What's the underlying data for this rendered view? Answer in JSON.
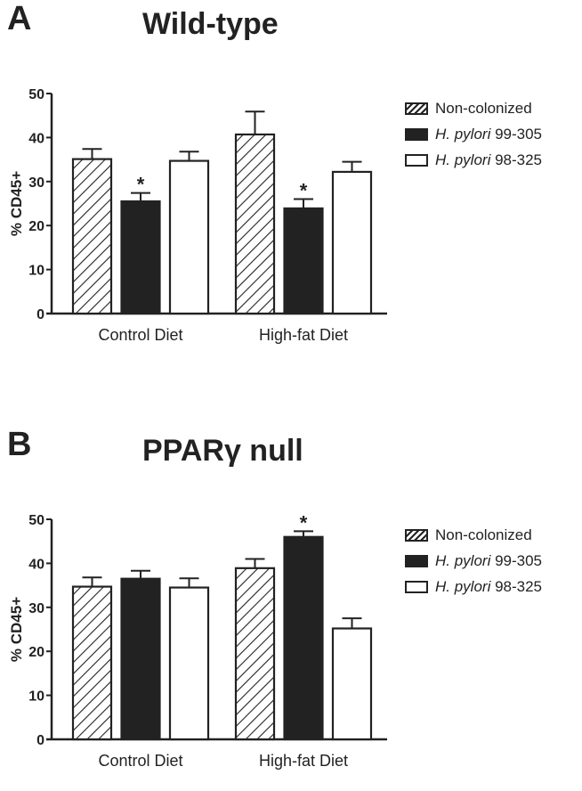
{
  "chart_data": [
    {
      "type": "bar",
      "panel_letter": "A",
      "title": "Wild-type",
      "ylabel": "% CD45+",
      "ylim": [
        0,
        50
      ],
      "yticks": [
        "0",
        "10",
        "20",
        "30",
        "40",
        "50"
      ],
      "categories": [
        "Control Diet",
        "High-fat Diet"
      ],
      "series": [
        {
          "name": "Non-colonized",
          "name_italic": "",
          "name_rest": "Non-colonized",
          "fill": "hatch",
          "values": [
            35.1,
            40.7
          ],
          "error": [
            2.3,
            5.2
          ],
          "significant": [
            false,
            false
          ]
        },
        {
          "name": "H. pylori 99-305",
          "name_italic": "H. pylori",
          "name_rest": " 99-305",
          "fill": "#222222",
          "values": [
            25.5,
            23.9
          ],
          "error": [
            1.9,
            2.1
          ],
          "significant": [
            true,
            true
          ]
        },
        {
          "name": "H. pylori 98-325",
          "name_italic": "H. pylori",
          "name_rest": " 98-325",
          "fill": "#ffffff",
          "values": [
            34.7,
            32.2
          ],
          "error": [
            2.1,
            2.3
          ],
          "significant": [
            false,
            false
          ]
        }
      ],
      "significance_marker": "*",
      "legend": "right"
    },
    {
      "type": "bar",
      "panel_letter": "B",
      "title": "PPARγ null",
      "ylabel": "% CD45+",
      "ylim": [
        0,
        50
      ],
      "yticks": [
        "0",
        "10",
        "20",
        "30",
        "40",
        "50"
      ],
      "categories": [
        "Control Diet",
        "High-fat Diet"
      ],
      "series": [
        {
          "name": "Non-colonized",
          "name_italic": "",
          "name_rest": "Non-colonized",
          "fill": "hatch",
          "values": [
            34.7,
            38.9
          ],
          "error": [
            2.1,
            2.1
          ],
          "significant": [
            false,
            false
          ]
        },
        {
          "name": "H. pylori 99-305",
          "name_italic": "H. pylori",
          "name_rest": " 99-305",
          "fill": "#222222",
          "values": [
            36.5,
            46.0
          ],
          "error": [
            1.8,
            1.3
          ],
          "significant": [
            false,
            true
          ]
        },
        {
          "name": "H. pylori 98-325",
          "name_italic": "H. pylori",
          "name_rest": " 98-325",
          "fill": "#ffffff",
          "values": [
            34.5,
            25.2
          ],
          "error": [
            2.1,
            2.3
          ],
          "significant": [
            false,
            false
          ]
        }
      ],
      "significance_marker": "*",
      "legend": "right"
    }
  ]
}
